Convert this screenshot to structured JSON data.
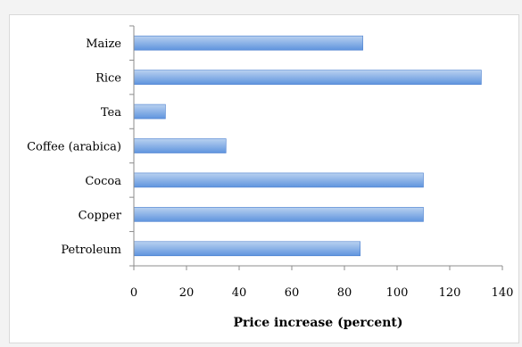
{
  "chart_data": {
    "type": "bar",
    "orientation": "horizontal",
    "categories": [
      "Maize",
      "Rice",
      "Tea",
      "Coffee (arabica)",
      "Cocoa",
      "Copper",
      "Petroleum"
    ],
    "values": [
      87,
      132,
      12,
      35,
      110,
      110,
      86
    ],
    "xlabel": "Price increase (percent)",
    "ylabel": "",
    "xlim": [
      0,
      140
    ],
    "xticks": [
      0,
      20,
      40,
      60,
      80,
      100,
      120,
      140
    ],
    "grid": false,
    "legend": "none",
    "colors": {
      "bar_top": "#b9d1f0",
      "bar_bottom": "#5f94de",
      "bar_stroke": "#4a7fcf",
      "axis": "#8c8c8c"
    }
  }
}
